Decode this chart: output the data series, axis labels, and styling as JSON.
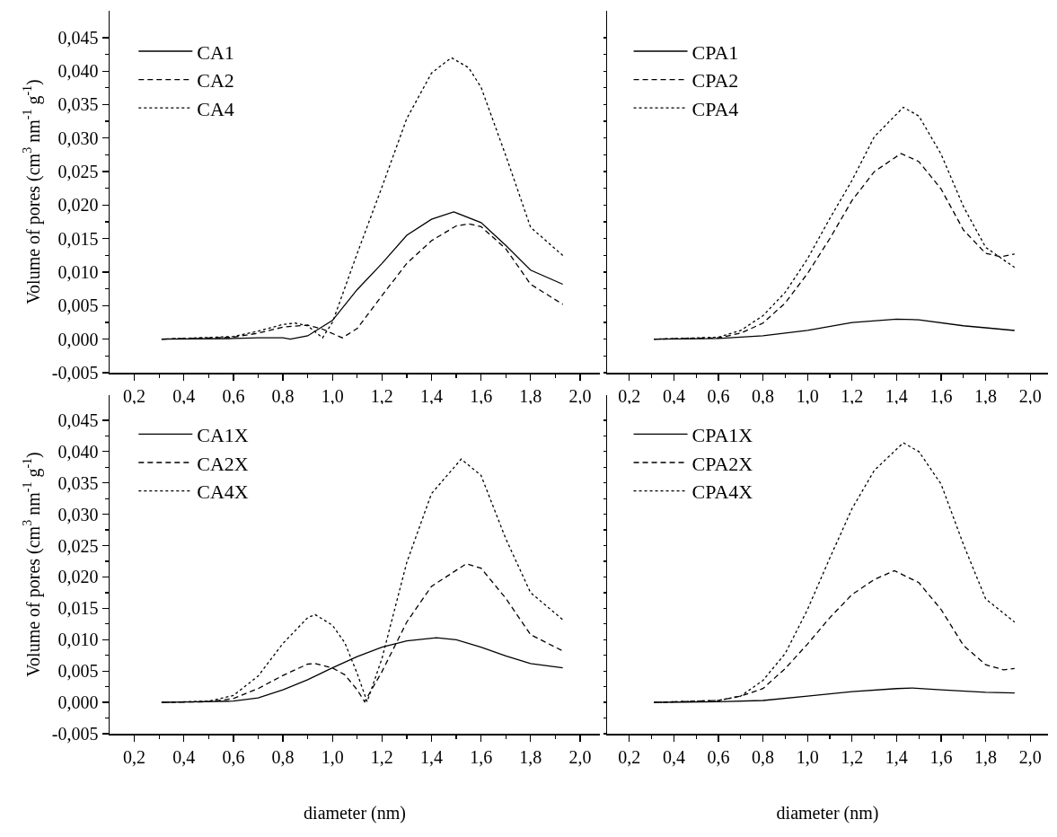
{
  "chart_data": [
    {
      "type": "line",
      "ylabel": "Volume of pores (cm$^{3}$ nm$^{-1}$ g$^{-1}$)",
      "xlim": [
        0.1,
        2.08
      ],
      "ylim": [
        -0.005,
        0.049
      ],
      "xticks": [
        {
          "value": 0.2,
          "label": "0,2"
        },
        {
          "value": 0.4,
          "label": "0,4"
        },
        {
          "value": 0.6,
          "label": "0,6"
        },
        {
          "value": 0.8,
          "label": "0,8"
        },
        {
          "value": 1.0,
          "label": "1,0"
        },
        {
          "value": 1.2,
          "label": "1,2"
        },
        {
          "value": 1.4,
          "label": "1,4"
        },
        {
          "value": 1.6,
          "label": "1,6"
        },
        {
          "value": 1.8,
          "label": "1,8"
        },
        {
          "value": 2.0,
          "label": "2,0"
        }
      ],
      "yticks": [
        {
          "value": -0.005,
          "label": "-0,005"
        },
        {
          "value": 0,
          "label": "0,000"
        },
        {
          "value": 0.005,
          "label": "0,005"
        },
        {
          "value": 0.01,
          "label": "0,010"
        },
        {
          "value": 0.015,
          "label": "0,015"
        },
        {
          "value": 0.02,
          "label": "0,020"
        },
        {
          "value": 0.025,
          "label": "0,025"
        },
        {
          "value": 0.03,
          "label": "0,030"
        },
        {
          "value": 0.035,
          "label": "0,035"
        },
        {
          "value": 0.04,
          "label": "0,040"
        },
        {
          "value": 0.045,
          "label": "0,045"
        }
      ],
      "legend": "top left",
      "grid": false,
      "series": [
        {
          "name": "CA1",
          "color": "#000000",
          "line_style": "solid",
          "x": [
            0.31,
            0.6,
            0.7,
            0.8,
            0.83,
            0.9,
            1.0,
            1.1,
            1.2,
            1.3,
            1.4,
            1.49,
            1.6,
            1.7,
            1.8,
            1.93
          ],
          "values": [
            0,
            0.0001,
            0.0002,
            0.0002,
            0,
            0.0005,
            0.0028,
            0.0074,
            0.0113,
            0.0155,
            0.0179,
            0.019,
            0.0174,
            0.014,
            0.0103,
            0.0082
          ]
        },
        {
          "name": "CA2",
          "color": "#000000",
          "line_style": "dashed",
          "x": [
            0.31,
            0.6,
            0.7,
            0.8,
            0.9,
            0.96,
            1.04,
            1.1,
            1.2,
            1.3,
            1.4,
            1.5,
            1.55,
            1.6,
            1.7,
            1.8,
            1.93
          ],
          "values": [
            0,
            0.0003,
            0.0009,
            0.0018,
            0.0021,
            0.0015,
            0.0002,
            0.0016,
            0.0065,
            0.0113,
            0.0147,
            0.0169,
            0.0172,
            0.0168,
            0.0135,
            0.0082,
            0.0052
          ]
        },
        {
          "name": "CA4",
          "color": "#000000",
          "line_style": "dotted",
          "x": [
            0.31,
            0.6,
            0.7,
            0.8,
            0.85,
            0.9,
            0.96,
            1.0,
            1.1,
            1.2,
            1.3,
            1.4,
            1.48,
            1.55,
            1.6,
            1.7,
            1.8,
            1.93
          ],
          "values": [
            0,
            0.0004,
            0.0012,
            0.0022,
            0.0024,
            0.002,
            0.0002,
            0.0025,
            0.0128,
            0.0227,
            0.0329,
            0.0397,
            0.042,
            0.0405,
            0.0376,
            0.0274,
            0.0167,
            0.0125
          ]
        }
      ]
    },
    {
      "type": "line",
      "xlim": [
        0.1,
        2.08
      ],
      "ylim": [
        -0.005,
        0.049
      ],
      "tick_labels": "x",
      "xticks": [
        {
          "value": 0.2,
          "label": "0,2"
        },
        {
          "value": 0.4,
          "label": "0,4"
        },
        {
          "value": 0.6,
          "label": "0,6"
        },
        {
          "value": 0.8,
          "label": "0,8"
        },
        {
          "value": 1.0,
          "label": "1,0"
        },
        {
          "value": 1.2,
          "label": "1,2"
        },
        {
          "value": 1.4,
          "label": "1,4"
        },
        {
          "value": 1.6,
          "label": "1,6"
        },
        {
          "value": 1.8,
          "label": "1,8"
        },
        {
          "value": 2.0,
          "label": "2,0"
        }
      ],
      "yticks": [
        {
          "value": -0.005,
          "label": null
        },
        {
          "value": 0,
          "label": null
        },
        {
          "value": 0.005,
          "label": null
        },
        {
          "value": 0.01,
          "label": null
        },
        {
          "value": 0.015,
          "label": null
        },
        {
          "value": 0.02,
          "label": null
        },
        {
          "value": 0.025,
          "label": null
        },
        {
          "value": 0.03,
          "label": null
        },
        {
          "value": 0.035,
          "label": null
        },
        {
          "value": 0.04,
          "label": null
        },
        {
          "value": 0.045,
          "label": null
        }
      ],
      "legend": "top left",
      "grid": false,
      "series": [
        {
          "name": "CPA1",
          "color": "#000000",
          "line_style": "solid",
          "x": [
            0.31,
            0.6,
            0.8,
            1.0,
            1.2,
            1.4,
            1.5,
            1.7,
            1.8,
            1.93
          ],
          "values": [
            0,
            0.0001,
            0.0005,
            0.0013,
            0.0025,
            0.003,
            0.0029,
            0.002,
            0.0017,
            0.0013
          ]
        },
        {
          "name": "CPA2",
          "color": "#000000",
          "line_style": "dashed",
          "x": [
            0.31,
            0.6,
            0.7,
            0.8,
            0.9,
            1.0,
            1.1,
            1.2,
            1.3,
            1.42,
            1.5,
            1.6,
            1.7,
            1.8,
            1.87,
            1.93
          ],
          "values": [
            0,
            0.0002,
            0.0009,
            0.0024,
            0.0054,
            0.0098,
            0.015,
            0.0207,
            0.025,
            0.0277,
            0.0265,
            0.0224,
            0.0163,
            0.0128,
            0.0123,
            0.0127
          ]
        },
        {
          "name": "CPA4",
          "color": "#000000",
          "line_style": "dotted",
          "x": [
            0.31,
            0.6,
            0.7,
            0.8,
            0.9,
            1.0,
            1.1,
            1.2,
            1.3,
            1.43,
            1.5,
            1.6,
            1.7,
            1.8,
            1.93
          ],
          "values": [
            0,
            0.0003,
            0.0013,
            0.0035,
            0.007,
            0.012,
            0.018,
            0.0237,
            0.0302,
            0.0346,
            0.0333,
            0.0276,
            0.0198,
            0.0137,
            0.0107
          ]
        }
      ]
    },
    {
      "type": "line",
      "xlabel": "diameter (nm)",
      "ylabel": "Volume of pores (cm$^{3}$ nm$^{-1}$ g$^{-1}$)",
      "xlim": [
        0.1,
        2.08
      ],
      "ylim": [
        -0.005,
        0.049
      ],
      "xticks": [
        {
          "value": 0.2,
          "label": "0,2"
        },
        {
          "value": 0.4,
          "label": "0,4"
        },
        {
          "value": 0.6,
          "label": "0,6"
        },
        {
          "value": 0.8,
          "label": "0,8"
        },
        {
          "value": 1.0,
          "label": "1,0"
        },
        {
          "value": 1.2,
          "label": "1,2"
        },
        {
          "value": 1.4,
          "label": "1,4"
        },
        {
          "value": 1.6,
          "label": "1,6"
        },
        {
          "value": 1.8,
          "label": "1,8"
        },
        {
          "value": 2.0,
          "label": "2,0"
        }
      ],
      "yticks": [
        {
          "value": -0.005,
          "label": "-0,005"
        },
        {
          "value": 0,
          "label": "0,000"
        },
        {
          "value": 0.005,
          "label": "0,005"
        },
        {
          "value": 0.01,
          "label": "0,010"
        },
        {
          "value": 0.015,
          "label": "0,015"
        },
        {
          "value": 0.02,
          "label": "0,020"
        },
        {
          "value": 0.025,
          "label": "0,025"
        },
        {
          "value": 0.03,
          "label": "0,030"
        },
        {
          "value": 0.035,
          "label": "0,035"
        },
        {
          "value": 0.04,
          "label": "0,040"
        },
        {
          "value": 0.045,
          "label": "0,045"
        }
      ],
      "legend": "top left",
      "grid": false,
      "series": [
        {
          "name": "CA1X",
          "color": "#000000",
          "line_style": "solid",
          "x": [
            0.31,
            0.6,
            0.7,
            0.8,
            0.9,
            1.0,
            1.1,
            1.2,
            1.3,
            1.42,
            1.5,
            1.6,
            1.7,
            1.8,
            1.93
          ],
          "values": [
            0,
            0.0002,
            0.0007,
            0.002,
            0.0036,
            0.0055,
            0.0073,
            0.0088,
            0.0098,
            0.0103,
            0.01,
            0.0088,
            0.0074,
            0.0062,
            0.0055
          ]
        },
        {
          "name": "CA2X",
          "color": "#000000",
          "line_style": "dashed",
          "x": [
            0.31,
            0.5,
            0.6,
            0.7,
            0.8,
            0.9,
            0.93,
            1.0,
            1.05,
            1.1,
            1.13,
            1.2,
            1.3,
            1.4,
            1.54,
            1.6,
            1.7,
            1.8,
            1.93
          ],
          "values": [
            0,
            0.0001,
            0.0006,
            0.0022,
            0.0043,
            0.0061,
            0.0062,
            0.0055,
            0.0044,
            0.002,
            0.0001,
            0.0049,
            0.0128,
            0.0185,
            0.0221,
            0.0214,
            0.0166,
            0.0108,
            0.0082
          ]
        },
        {
          "name": "CA4X",
          "color": "#000000",
          "line_style": "dotted",
          "x": [
            0.31,
            0.5,
            0.6,
            0.7,
            0.8,
            0.9,
            0.93,
            1.0,
            1.05,
            1.1,
            1.14,
            1.2,
            1.3,
            1.4,
            1.52,
            1.6,
            1.7,
            1.8,
            1.93
          ],
          "values": [
            0,
            0.0002,
            0.0011,
            0.0042,
            0.0094,
            0.0135,
            0.014,
            0.0123,
            0.0095,
            0.0046,
            0.0001,
            0.007,
            0.0223,
            0.0333,
            0.0388,
            0.0362,
            0.0261,
            0.0175,
            0.0132
          ]
        }
      ]
    },
    {
      "type": "line",
      "xlabel": "diameter (nm)",
      "xlim": [
        0.1,
        2.08
      ],
      "ylim": [
        -0.005,
        0.049
      ],
      "tick_labels": "x",
      "xticks": [
        {
          "value": 0.2,
          "label": "0,2"
        },
        {
          "value": 0.4,
          "label": "0,4"
        },
        {
          "value": 0.6,
          "label": "0,6"
        },
        {
          "value": 0.8,
          "label": "0,8"
        },
        {
          "value": 1.0,
          "label": "1,0"
        },
        {
          "value": 1.2,
          "label": "1,2"
        },
        {
          "value": 1.4,
          "label": "1,4"
        },
        {
          "value": 1.6,
          "label": "1,6"
        },
        {
          "value": 1.8,
          "label": "1,8"
        },
        {
          "value": 2.0,
          "label": "2,0"
        }
      ],
      "yticks": [
        {
          "value": -0.005,
          "label": null
        },
        {
          "value": 0,
          "label": null
        },
        {
          "value": 0.005,
          "label": null
        },
        {
          "value": 0.01,
          "label": null
        },
        {
          "value": 0.015,
          "label": null
        },
        {
          "value": 0.02,
          "label": null
        },
        {
          "value": 0.025,
          "label": null
        },
        {
          "value": 0.03,
          "label": null
        },
        {
          "value": 0.035,
          "label": null
        },
        {
          "value": 0.04,
          "label": null
        },
        {
          "value": 0.045,
          "label": null
        }
      ],
      "legend": "top left",
      "grid": false,
      "series": [
        {
          "name": "CPA1X",
          "color": "#000000",
          "line_style": "solid",
          "x": [
            0.31,
            0.6,
            0.8,
            1.0,
            1.2,
            1.4,
            1.47,
            1.6,
            1.8,
            1.93
          ],
          "values": [
            0,
            0.0001,
            0.0003,
            0.001,
            0.0017,
            0.0022,
            0.0023,
            0.002,
            0.0016,
            0.0015
          ]
        },
        {
          "name": "CPA2X",
          "color": "#000000",
          "line_style": "dashed",
          "x": [
            0.31,
            0.6,
            0.7,
            0.8,
            0.9,
            1.0,
            1.1,
            1.2,
            1.3,
            1.39,
            1.5,
            1.6,
            1.7,
            1.8,
            1.88,
            1.93
          ],
          "values": [
            0,
            0.0003,
            0.001,
            0.0022,
            0.0054,
            0.0093,
            0.0135,
            0.0172,
            0.0196,
            0.021,
            0.0191,
            0.0148,
            0.0091,
            0.006,
            0.0052,
            0.0054
          ]
        },
        {
          "name": "CPA4X",
          "color": "#000000",
          "line_style": "dotted",
          "x": [
            0.31,
            0.6,
            0.7,
            0.8,
            0.9,
            1.0,
            1.1,
            1.2,
            1.3,
            1.43,
            1.5,
            1.6,
            1.7,
            1.8,
            1.93
          ],
          "values": [
            0,
            0.0003,
            0.001,
            0.0035,
            0.0078,
            0.0148,
            0.023,
            0.0309,
            0.037,
            0.0414,
            0.04,
            0.0348,
            0.0252,
            0.0165,
            0.0128
          ]
        }
      ]
    }
  ]
}
